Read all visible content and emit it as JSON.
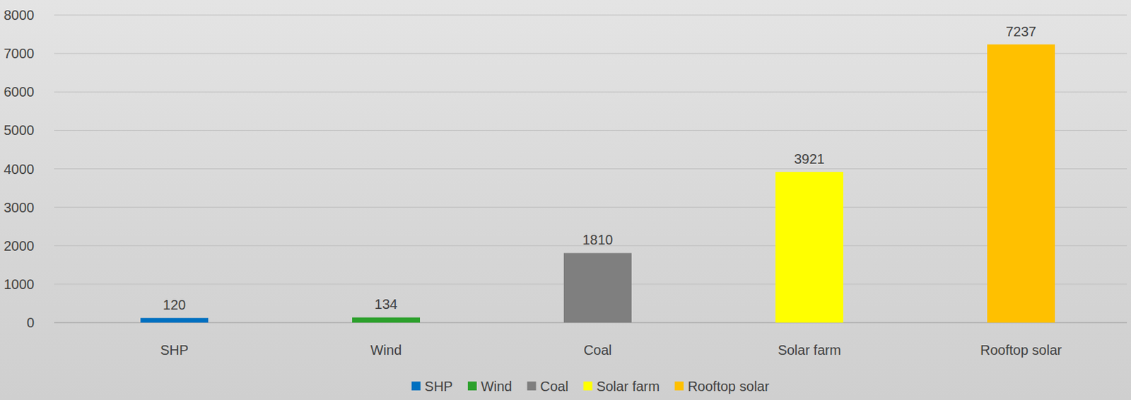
{
  "chart_data": {
    "type": "bar",
    "categories": [
      "SHP",
      "Wind",
      "Coal",
      "Solar farm",
      "Rooftop solar"
    ],
    "values": [
      120,
      134,
      1810,
      3921,
      7237
    ],
    "colors": [
      "#0070c0",
      "#2ca02c",
      "#7f7f7f",
      "#ffff00",
      "#ffc000"
    ],
    "ylim": [
      0,
      8000
    ],
    "yticks": [
      0,
      1000,
      2000,
      3000,
      4000,
      5000,
      6000,
      7000,
      8000
    ],
    "grid": true,
    "data_labels": true,
    "legend": "bottom"
  }
}
